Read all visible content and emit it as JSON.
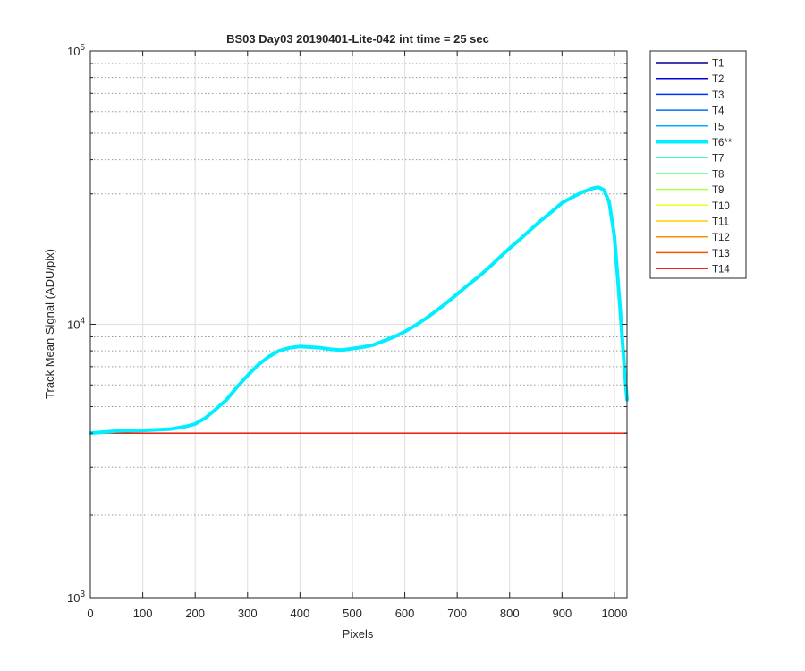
{
  "chart_data": {
    "type": "line",
    "title": "BS03 Day03 20190401-Lite-042 int time = 25 sec",
    "xlabel": "Pixels",
    "ylabel": "Track Mean Signal (ADU/pix)",
    "xlim": [
      0,
      1024
    ],
    "ylim": [
      1000,
      100000
    ],
    "yscale": "log",
    "grid": true,
    "legend_position": "outside-top-right",
    "xticks": [
      0,
      100,
      200,
      300,
      400,
      500,
      600,
      700,
      800,
      900,
      1000
    ],
    "xtick_labels": [
      "0",
      "100",
      "200",
      "300",
      "400",
      "500",
      "600",
      "700",
      "800",
      "900",
      "1000"
    ],
    "yticks": [
      {
        "value": 1000,
        "base": "10",
        "exp": "3"
      },
      {
        "value": 10000,
        "base": "10",
        "exp": "4"
      },
      {
        "value": 100000,
        "base": "10",
        "exp": "5"
      }
    ],
    "series": [
      {
        "name": "T1",
        "color": "#00008f",
        "highlight": false,
        "x": [
          0,
          1024
        ],
        "y": [
          4000,
          4000
        ]
      },
      {
        "name": "T2",
        "color": "#0000df",
        "highlight": false,
        "x": [
          0,
          1024
        ],
        "y": [
          4000,
          4000
        ]
      },
      {
        "name": "T3",
        "color": "#0030ff",
        "highlight": false,
        "x": [
          0,
          1024
        ],
        "y": [
          4000,
          4000
        ]
      },
      {
        "name": "T4",
        "color": "#0070ff",
        "highlight": false,
        "x": [
          0,
          1024
        ],
        "y": [
          4000,
          4000
        ]
      },
      {
        "name": "T5",
        "color": "#00b0ff",
        "highlight": false,
        "x": [
          0,
          1024
        ],
        "y": [
          4000,
          4000
        ]
      },
      {
        "name": "T6**",
        "color": "#00efff",
        "highlight": true,
        "x": [
          0,
          50,
          100,
          150,
          180,
          200,
          220,
          240,
          260,
          280,
          300,
          320,
          340,
          360,
          380,
          400,
          420,
          440,
          460,
          480,
          500,
          520,
          540,
          560,
          580,
          600,
          620,
          640,
          660,
          680,
          700,
          720,
          740,
          760,
          780,
          800,
          820,
          840,
          860,
          880,
          900,
          920,
          940,
          960,
          970,
          980,
          990,
          1000,
          1010,
          1020,
          1024
        ],
        "y": [
          4000,
          4070,
          4090,
          4130,
          4220,
          4320,
          4550,
          4900,
          5300,
          5900,
          6500,
          7100,
          7600,
          8000,
          8200,
          8300,
          8250,
          8200,
          8100,
          8050,
          8150,
          8250,
          8400,
          8700,
          9000,
          9400,
          9900,
          10500,
          11200,
          12000,
          12900,
          13900,
          14900,
          16100,
          17500,
          19000,
          20500,
          22200,
          24000,
          25800,
          27800,
          29200,
          30500,
          31500,
          31700,
          31000,
          28000,
          21000,
          12000,
          6500,
          5300
        ]
      },
      {
        "name": "T7",
        "color": "#40ffbf",
        "highlight": false,
        "x": [
          0,
          1024
        ],
        "y": [
          4000,
          4000
        ]
      },
      {
        "name": "T8",
        "color": "#70ff8f",
        "highlight": false,
        "x": [
          0,
          1024
        ],
        "y": [
          4000,
          4000
        ]
      },
      {
        "name": "T9",
        "color": "#b0ff4f",
        "highlight": false,
        "x": [
          0,
          1024
        ],
        "y": [
          4000,
          4000
        ]
      },
      {
        "name": "T10",
        "color": "#efff10",
        "highlight": false,
        "x": [
          0,
          1024
        ],
        "y": [
          4000,
          4000
        ]
      },
      {
        "name": "T11",
        "color": "#ffcf00",
        "highlight": false,
        "x": [
          0,
          1024
        ],
        "y": [
          4000,
          4000
        ]
      },
      {
        "name": "T12",
        "color": "#ff8f00",
        "highlight": false,
        "x": [
          0,
          1024
        ],
        "y": [
          4000,
          4000
        ]
      },
      {
        "name": "T13",
        "color": "#ff4f00",
        "highlight": false,
        "x": [
          0,
          1024
        ],
        "y": [
          4000,
          4000
        ]
      },
      {
        "name": "T14",
        "color": "#ef0000",
        "highlight": false,
        "x": [
          0,
          1024
        ],
        "y": [
          4000,
          4000
        ]
      }
    ]
  }
}
